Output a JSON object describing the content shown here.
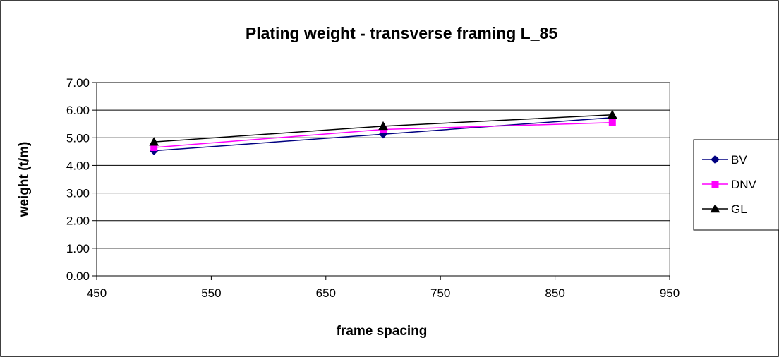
{
  "chart_data": {
    "type": "line",
    "title": "Plating weight - transverse framing L_85",
    "xlabel": "frame spacing",
    "ylabel": "weight (t/m)",
    "xlim": [
      450,
      950
    ],
    "ylim": [
      0,
      7
    ],
    "x_ticks": [
      "450",
      "550",
      "650",
      "750",
      "850",
      "950"
    ],
    "y_ticks": [
      "0.00",
      "1.00",
      "2.00",
      "3.00",
      "4.00",
      "5.00",
      "6.00",
      "7.00"
    ],
    "x_tick_values": [
      450,
      550,
      650,
      750,
      850,
      950
    ],
    "y_tick_values": [
      0,
      1,
      2,
      3,
      4,
      5,
      6,
      7
    ],
    "grid": "horizontal",
    "legend_position": "right",
    "x": [
      500,
      700,
      900
    ],
    "series": [
      {
        "name": "BV",
        "values": [
          4.53,
          5.13,
          5.73
        ],
        "color": "#000080",
        "marker": "diamond"
      },
      {
        "name": "DNV",
        "values": [
          4.65,
          5.3,
          5.55
        ],
        "color": "#ff00ff",
        "marker": "square"
      },
      {
        "name": "GL",
        "values": [
          4.85,
          5.42,
          5.83
        ],
        "color": "#000000",
        "marker": "triangle"
      }
    ]
  }
}
